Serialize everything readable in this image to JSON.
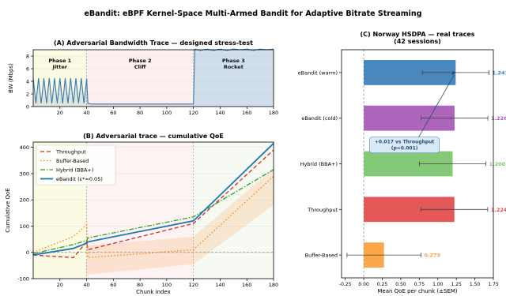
{
  "suptitle": "eBandit: eBPF Kernel-Space Multi-Armed Bandit for Adaptive Bitrate Streaming",
  "chart_data": [
    {
      "type": "line",
      "panel": "A",
      "title": "(A) Adversarial Bandwidth Trace — designed stress-test",
      "xlabel": "",
      "ylabel": "BW (Mbps)",
      "xlim": [
        0,
        180
      ],
      "ylim": [
        0,
        9
      ],
      "xticks": [
        20,
        40,
        60,
        80,
        100,
        120,
        140,
        160,
        180
      ],
      "yticks": [
        0,
        2,
        4,
        6,
        8
      ],
      "grid": true,
      "phases": [
        {
          "label": "Phase 1\nJitter",
          "x_start": 0,
          "x_end": 40,
          "color": "#fbfae3"
        },
        {
          "label": "Phase 2\nCliff",
          "x_start": 40,
          "x_end": 120,
          "color": "#fcefed"
        },
        {
          "label": "Phase 3\nRocket",
          "x_start": 120,
          "x_end": 180,
          "color": "#eaf1f6"
        }
      ],
      "series": [
        {
          "name": "",
          "color": "#3a78b0",
          "x": [
            0,
            2,
            4,
            6,
            8,
            10,
            12,
            14,
            16,
            18,
            20,
            22,
            24,
            26,
            28,
            30,
            32,
            34,
            36,
            38,
            40,
            41,
            44,
            60,
            80,
            100,
            119,
            120,
            121,
            125,
            130,
            135,
            140,
            145,
            150,
            155,
            160,
            165,
            170,
            175,
            180
          ],
          "y": [
            4.5,
            0.5,
            4.5,
            0.5,
            4.5,
            0.5,
            4.5,
            0.5,
            4.5,
            0.5,
            4.5,
            0.5,
            4.5,
            0.5,
            4.5,
            0.5,
            4.5,
            0.5,
            4.5,
            0.5,
            4.4,
            0.5,
            0.4,
            0.4,
            0.4,
            0.4,
            0.4,
            0.4,
            9.1,
            8.9,
            9.1,
            8.9,
            9.1,
            8.9,
            9.1,
            9.0,
            9.1,
            8.9,
            9.1,
            9.0,
            9.1
          ]
        }
      ]
    },
    {
      "type": "line",
      "panel": "B",
      "title": "(B) Adversarial trace — cumulative QoE",
      "xlabel": "Chunk index",
      "ylabel": "Cumulative QoE",
      "xlim": [
        0,
        180
      ],
      "ylim": [
        -100,
        420
      ],
      "xticks": [
        20,
        40,
        60,
        80,
        100,
        120,
        140,
        160,
        180
      ],
      "yticks": [
        -100,
        0,
        100,
        200,
        300,
        400
      ],
      "grid": true,
      "legend": "upper-left",
      "vlines": [
        40,
        120
      ],
      "series": [
        {
          "name": "Throughput",
          "color": "#d62728",
          "dash": "dashed",
          "x": [
            0,
            30,
            40,
            41,
            120,
            180
          ],
          "y": [
            -10,
            -20,
            40,
            10,
            110,
            390
          ]
        },
        {
          "name": "Buffer-Based",
          "color": "#ff7f0e",
          "dash": "dotted",
          "x": [
            0,
            30,
            40,
            41,
            120,
            180
          ],
          "y": [
            0,
            60,
            105,
            -20,
            10,
            290
          ]
        },
        {
          "name": "Hybrid (BBA+)",
          "color": "#2ca02c",
          "dash": "dashdot",
          "x": [
            0,
            30,
            40,
            41,
            120,
            180
          ],
          "y": [
            -5,
            30,
            45,
            55,
            135,
            315
          ]
        },
        {
          "name": "eBandit  (ε*=0.05)",
          "color": "#1f77b4",
          "dash": "solid",
          "x": [
            0,
            30,
            40,
            41,
            120,
            180
          ],
          "y": [
            -10,
            15,
            35,
            40,
            120,
            415
          ]
        }
      ],
      "band": {
        "color": "#ff7f0e",
        "x": [
          40,
          120,
          180
        ],
        "upper": [
          25,
          60,
          320
        ],
        "lower": [
          -85,
          -45,
          180
        ]
      }
    },
    {
      "type": "bar",
      "orientation": "horizontal",
      "panel": "C",
      "title": "(C) Norway HSDPA — real traces\n(42 sessions)",
      "xlabel": "Mean QoE per chunk  (±SEM)",
      "ylabel": "",
      "xlim": [
        -0.3,
        1.75
      ],
      "xticks": [
        -0.25,
        0.0,
        0.25,
        0.5,
        0.75,
        1.0,
        1.25,
        1.5,
        1.75
      ],
      "categories": [
        "eBandit (warm)",
        "eBandit (cold)",
        "Hybrid (BBA+)",
        "Throughput",
        "Buffer-Based"
      ],
      "values": [
        1.241,
        1.226,
        1.2,
        1.224,
        0.273
      ],
      "errors": [
        0.45,
        0.45,
        0.45,
        0.45,
        0.5
      ],
      "value_labels": [
        "1.241",
        "1.226",
        "1.200",
        "1.224",
        "0.273"
      ],
      "colors": [
        "#3a7db8",
        "#a558b5",
        "#79c46b",
        "#e34a4a",
        "#fb9e3a"
      ],
      "annotation": {
        "text": "+0.017 vs Throughput\n(p=0.001)",
        "target_category": "eBandit (warm)"
      }
    }
  ]
}
